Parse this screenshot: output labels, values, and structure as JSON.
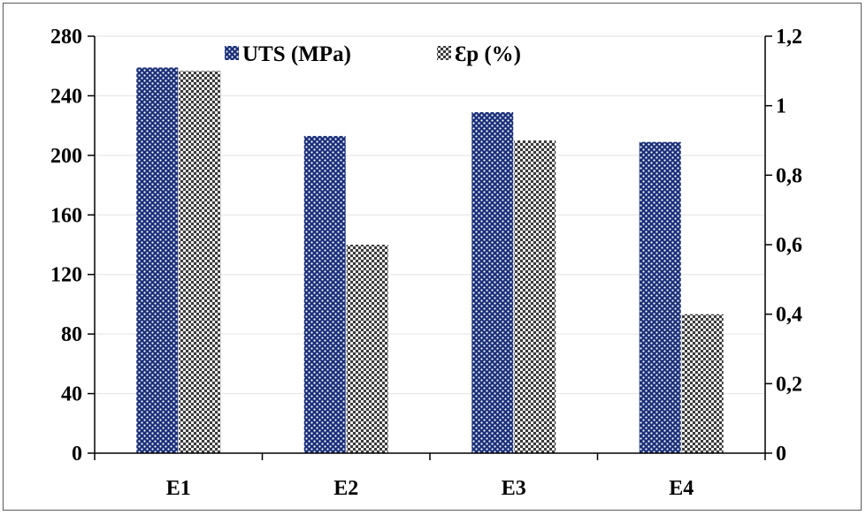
{
  "chart_data": {
    "type": "bar",
    "title": "",
    "categories": [
      "E1",
      "E2",
      "E3",
      "E4"
    ],
    "series": [
      {
        "name": "UTS (MPa)",
        "values": [
          259,
          213,
          229,
          209
        ],
        "axis": "left",
        "color": "#1a2f7a",
        "pattern": "white-dots"
      },
      {
        "name": "Ɛp (%)",
        "values": [
          1.1,
          0.6,
          0.9,
          0.4
        ],
        "axis": "right",
        "color": "#8c8c8c",
        "pattern": "checker-dots"
      }
    ],
    "y_left": {
      "min": 0,
      "max": 280,
      "ticks": [
        "0",
        "40",
        "80",
        "120",
        "160",
        "200",
        "240",
        "280"
      ]
    },
    "y_right": {
      "min": 0,
      "max": 1.2,
      "ticks": [
        "0",
        "0,2",
        "0,4",
        "0,6",
        "0,8",
        "1",
        "1,2"
      ]
    },
    "grid": true,
    "legend_position": "top-center"
  }
}
